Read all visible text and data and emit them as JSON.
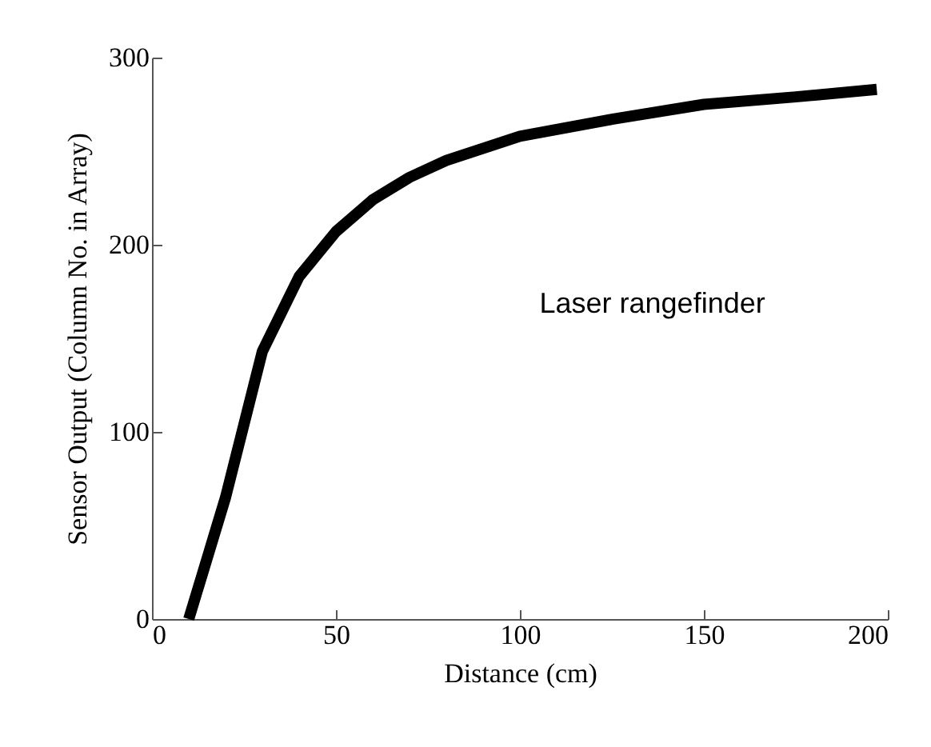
{
  "chart_data": {
    "type": "line",
    "xlabel": "Distance (cm)",
    "ylabel": "Sensor Output (Column No. in Array)",
    "annotations": [
      "Laser rangefinder"
    ],
    "x": [
      10,
      20,
      30,
      40,
      50,
      60,
      70,
      80,
      100,
      125,
      150,
      175,
      197
    ],
    "series": [
      {
        "color": "#000000",
        "values": [
          0,
          65,
          143,
          183,
          207,
          224,
          236,
          245,
          258,
          267,
          275,
          279,
          283
        ]
      }
    ],
    "xlim": [
      0,
      200
    ],
    "xticks": [
      0,
      50,
      100,
      150,
      200
    ],
    "ylim": [
      0,
      300
    ],
    "yticks": [
      0,
      100,
      200,
      300
    ],
    "grid": false,
    "legend": false,
    "marker": "none",
    "line_style": "solid"
  }
}
